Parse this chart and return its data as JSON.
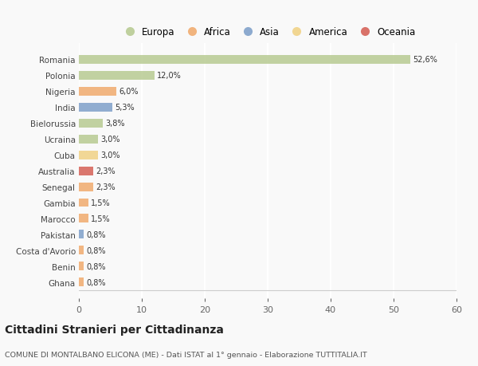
{
  "countries": [
    "Romania",
    "Polonia",
    "Nigeria",
    "India",
    "Bielorussia",
    "Ucraina",
    "Cuba",
    "Australia",
    "Senegal",
    "Gambia",
    "Marocco",
    "Pakistan",
    "Costa d'Avorio",
    "Benin",
    "Ghana"
  ],
  "values": [
    52.6,
    12.0,
    6.0,
    5.3,
    3.8,
    3.0,
    3.0,
    2.3,
    2.3,
    1.5,
    1.5,
    0.8,
    0.8,
    0.8,
    0.8
  ],
  "labels": [
    "52,6%",
    "12,0%",
    "6,0%",
    "5,3%",
    "3,8%",
    "3,0%",
    "3,0%",
    "2,3%",
    "2,3%",
    "1,5%",
    "1,5%",
    "0,8%",
    "0,8%",
    "0,8%",
    "0,8%"
  ],
  "colors": [
    "#b5c98e",
    "#b5c98e",
    "#f0a868",
    "#7a9dc8",
    "#b5c98e",
    "#b5c98e",
    "#f0d080",
    "#d45a50",
    "#f0a868",
    "#f0a868",
    "#f0a868",
    "#7a9dc8",
    "#f0a868",
    "#f0a868",
    "#f0a868"
  ],
  "legend_labels": [
    "Europa",
    "Africa",
    "Asia",
    "America",
    "Oceania"
  ],
  "legend_colors": [
    "#b5c98e",
    "#f0a868",
    "#7a9dc8",
    "#f0d080",
    "#d45a50"
  ],
  "title": "Cittadini Stranieri per Cittadinanza",
  "subtitle": "COMUNE DI MONTALBANO ELICONA (ME) - Dati ISTAT al 1° gennaio - Elaborazione TUTTITALIA.IT",
  "xlim": [
    0,
    60
  ],
  "xticks": [
    0,
    10,
    20,
    30,
    40,
    50,
    60
  ],
  "bg_color": "#f9f9f9",
  "bar_height": 0.55
}
